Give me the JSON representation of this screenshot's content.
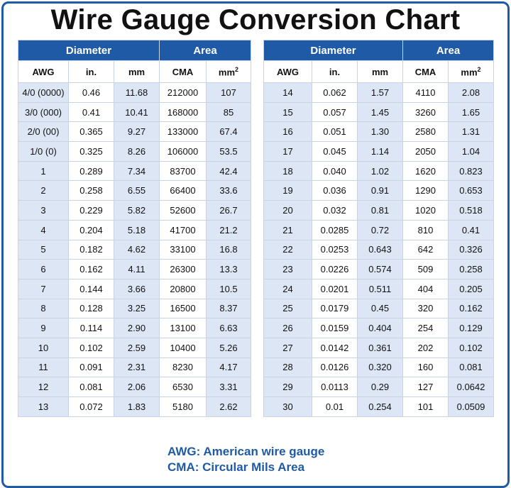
{
  "title": "Wire Gauge Conversion Chart",
  "colors": {
    "header": "#1f5aa6",
    "stripe": "#dde6f4",
    "legend": "#1f5aa6"
  },
  "headers": {
    "diameter": "Diameter",
    "area": "Area",
    "awg": "AWG",
    "in": "in.",
    "mm": "mm",
    "cma": "CMA",
    "mm2": "mm",
    "mm2_sup": "2"
  },
  "left_rows": [
    {
      "awg": "4/0 (0000)",
      "in": "0.46",
      "mm": "11.68",
      "cma": "212000",
      "mm2": "107"
    },
    {
      "awg": "3/0 (000)",
      "in": "0.41",
      "mm": "10.41",
      "cma": "168000",
      "mm2": "85"
    },
    {
      "awg": "2/0 (00)",
      "in": "0.365",
      "mm": "9.27",
      "cma": "133000",
      "mm2": "67.4"
    },
    {
      "awg": "1/0 (0)",
      "in": "0.325",
      "mm": "8.26",
      "cma": "106000",
      "mm2": "53.5"
    },
    {
      "awg": "1",
      "in": "0.289",
      "mm": "7.34",
      "cma": "83700",
      "mm2": "42.4"
    },
    {
      "awg": "2",
      "in": "0.258",
      "mm": "6.55",
      "cma": "66400",
      "mm2": "33.6"
    },
    {
      "awg": "3",
      "in": "0.229",
      "mm": "5.82",
      "cma": "52600",
      "mm2": "26.7"
    },
    {
      "awg": "4",
      "in": "0.204",
      "mm": "5.18",
      "cma": "41700",
      "mm2": "21.2"
    },
    {
      "awg": "5",
      "in": "0.182",
      "mm": "4.62",
      "cma": "33100",
      "mm2": "16.8"
    },
    {
      "awg": "6",
      "in": "0.162",
      "mm": "4.11",
      "cma": "26300",
      "mm2": "13.3"
    },
    {
      "awg": "7",
      "in": "0.144",
      "mm": "3.66",
      "cma": "20800",
      "mm2": "10.5"
    },
    {
      "awg": "8",
      "in": "0.128",
      "mm": "3.25",
      "cma": "16500",
      "mm2": "8.37"
    },
    {
      "awg": "9",
      "in": "0.114",
      "mm": "2.90",
      "cma": "13100",
      "mm2": "6.63"
    },
    {
      "awg": "10",
      "in": "0.102",
      "mm": "2.59",
      "cma": "10400",
      "mm2": "5.26"
    },
    {
      "awg": "11",
      "in": "0.091",
      "mm": "2.31",
      "cma": "8230",
      "mm2": "4.17"
    },
    {
      "awg": "12",
      "in": "0.081",
      "mm": "2.06",
      "cma": "6530",
      "mm2": "3.31"
    },
    {
      "awg": "13",
      "in": "0.072",
      "mm": "1.83",
      "cma": "5180",
      "mm2": "2.62"
    }
  ],
  "right_rows": [
    {
      "awg": "14",
      "in": "0.062",
      "mm": "1.57",
      "cma": "4110",
      "mm2": "2.08"
    },
    {
      "awg": "15",
      "in": "0.057",
      "mm": "1.45",
      "cma": "3260",
      "mm2": "1.65"
    },
    {
      "awg": "16",
      "in": "0.051",
      "mm": "1.30",
      "cma": "2580",
      "mm2": "1.31"
    },
    {
      "awg": "17",
      "in": "0.045",
      "mm": "1.14",
      "cma": "2050",
      "mm2": "1.04"
    },
    {
      "awg": "18",
      "in": "0.040",
      "mm": "1.02",
      "cma": "1620",
      "mm2": "0.823"
    },
    {
      "awg": "19",
      "in": "0.036",
      "mm": "0.91",
      "cma": "1290",
      "mm2": "0.653"
    },
    {
      "awg": "20",
      "in": "0.032",
      "mm": "0.81",
      "cma": "1020",
      "mm2": "0.518"
    },
    {
      "awg": "21",
      "in": "0.0285",
      "mm": "0.72",
      "cma": "810",
      "mm2": "0.41"
    },
    {
      "awg": "22",
      "in": "0.0253",
      "mm": "0.643",
      "cma": "642",
      "mm2": "0.326"
    },
    {
      "awg": "23",
      "in": "0.0226",
      "mm": "0.574",
      "cma": "509",
      "mm2": "0.258"
    },
    {
      "awg": "24",
      "in": "0.0201",
      "mm": "0.511",
      "cma": "404",
      "mm2": "0.205"
    },
    {
      "awg": "25",
      "in": "0.0179",
      "mm": "0.45",
      "cma": "320",
      "mm2": "0.162"
    },
    {
      "awg": "26",
      "in": "0.0159",
      "mm": "0.404",
      "cma": "254",
      "mm2": "0.129"
    },
    {
      "awg": "27",
      "in": "0.0142",
      "mm": "0.361",
      "cma": "202",
      "mm2": "0.102"
    },
    {
      "awg": "28",
      "in": "0.0126",
      "mm": "0.320",
      "cma": "160",
      "mm2": "0.081"
    },
    {
      "awg": "29",
      "in": "0.0113",
      "mm": "0.29",
      "cma": "127",
      "mm2": "0.0642"
    },
    {
      "awg": "30",
      "in": "0.01",
      "mm": "0.254",
      "cma": "101",
      "mm2": "0.0509"
    }
  ],
  "legend": {
    "awg": "AWG: American wire gauge",
    "cma": "CMA: Circular Mils Area"
  }
}
